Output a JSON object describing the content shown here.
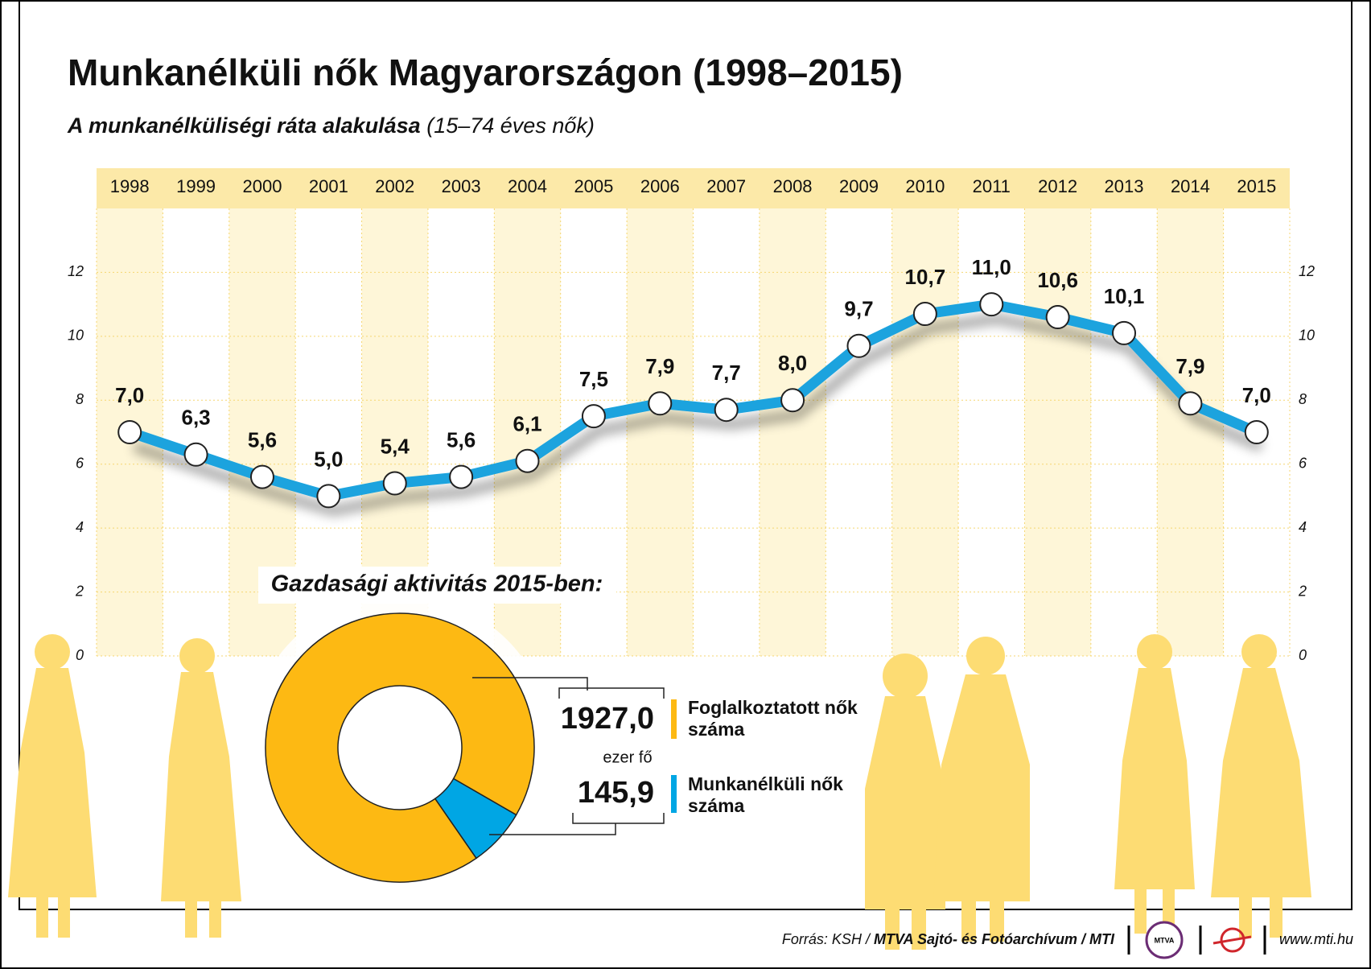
{
  "chart_data": [
    {
      "type": "line",
      "title": "Munkanélküli nők Magyarországon (1998–2015)",
      "subtitle": "A munkanélküliségi ráta alakulása",
      "subtitle_note": "(15–74 éves nők)",
      "categories": [
        "1998",
        "1999",
        "2000",
        "2001",
        "2002",
        "2003",
        "2004",
        "2005",
        "2006",
        "2007",
        "2008",
        "2009",
        "2010",
        "2011",
        "2012",
        "2013",
        "2014",
        "2015"
      ],
      "values": [
        7.0,
        6.3,
        5.6,
        5.0,
        5.4,
        5.6,
        6.1,
        7.5,
        7.9,
        7.7,
        8.0,
        9.7,
        10.7,
        11.0,
        10.6,
        10.1,
        7.9,
        7.0
      ],
      "value_labels": [
        "7,0",
        "6,3",
        "5,6",
        "5,0",
        "5,4",
        "5,6",
        "6,1",
        "7,5",
        "7,9",
        "7,7",
        "8,0",
        "9,7",
        "10,7",
        "11,0",
        "10,6",
        "10,1",
        "7,9",
        "7,0"
      ],
      "color": "#1ba3de",
      "ylim": [
        0,
        14
      ],
      "yticks": [
        0,
        2,
        4,
        6,
        8,
        10,
        12
      ],
      "grid": true
    },
    {
      "type": "pie",
      "title": "Gazdasági aktivitás 2015-ben:",
      "categories": [
        "Foglalkoztatott nők száma",
        "Munkanélküli nők száma"
      ],
      "values": [
        1927.0,
        145.9
      ],
      "value_labels": [
        "1927,0",
        "145,9"
      ],
      "unit": "ezer fő",
      "colors": [
        "#fdb913",
        "#00a6e4"
      ]
    }
  ],
  "footer": {
    "source_prefix": "Forrás: KSH /",
    "source": "MTVA Sajtó- és Fotóarchívum / MTI",
    "logo": "MTVA",
    "url": "www.mti.hu"
  }
}
